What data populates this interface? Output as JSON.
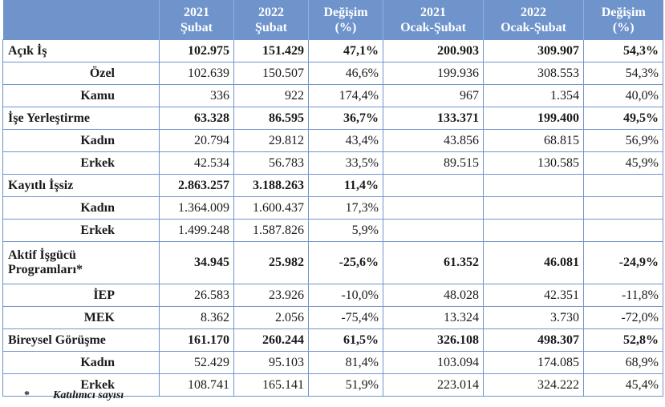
{
  "headers": [
    "",
    "2021\nŞubat",
    "2022\nŞubat",
    "Değişim\n(%)",
    "2021\nOcak-Şubat",
    "2022\nOcak-Şubat",
    "Değişim\n(%)"
  ],
  "rows": [
    {
      "type": "main",
      "h": 1,
      "label": "Açık İş",
      "cells": [
        "102.975",
        "151.429",
        "47,1%",
        "200.903",
        "309.907",
        "54,3%"
      ]
    },
    {
      "type": "sub",
      "h": 1,
      "label": "Özel",
      "cells": [
        "102.639",
        "150.507",
        "46,6%",
        "199.936",
        "308.553",
        "54,3%"
      ]
    },
    {
      "type": "sub",
      "h": 1,
      "label": "Kamu",
      "cells": [
        "336",
        "922",
        "174,4%",
        "967",
        "1.354",
        "40,0%"
      ]
    },
    {
      "type": "main",
      "h": 1,
      "label": "İşe Yerleştirme",
      "cells": [
        "63.328",
        "86.595",
        "36,7%",
        "133.371",
        "199.400",
        "49,5%"
      ]
    },
    {
      "type": "sub",
      "h": 1,
      "label": "Kadın",
      "cells": [
        "20.794",
        "29.812",
        "43,4%",
        "43.856",
        "68.815",
        "56,9%"
      ]
    },
    {
      "type": "sub",
      "h": 1,
      "label": "Erkek",
      "cells": [
        "42.534",
        "56.783",
        "33,5%",
        "89.515",
        "130.585",
        "45,9%"
      ]
    },
    {
      "type": "main",
      "h": 1,
      "label": "Kayıtlı İşsiz",
      "cells": [
        "2.863.257",
        "3.188.263",
        "11,4%",
        "",
        "",
        ""
      ]
    },
    {
      "type": "sub",
      "h": 1,
      "label": "Kadın",
      "cells": [
        "1.364.009",
        "1.600.437",
        "17,3%",
        "",
        "",
        ""
      ]
    },
    {
      "type": "sub",
      "h": 1,
      "label": "Erkek",
      "cells": [
        "1.499.248",
        "1.587.826",
        "5,9%",
        "",
        "",
        ""
      ]
    },
    {
      "type": "main",
      "h": 2,
      "label": "Aktif İşgücü\nProgramları*",
      "cells": [
        "34.945",
        "25.982",
        "-25,6%",
        "61.352",
        "46.081",
        "-24,9%"
      ]
    },
    {
      "type": "sub",
      "h": 1,
      "label": "İEP",
      "cells": [
        "26.583",
        "23.926",
        "-10,0%",
        "48.028",
        "42.351",
        "-11,8%"
      ]
    },
    {
      "type": "sub",
      "h": 1,
      "label": "MEK",
      "cells": [
        "8.362",
        "2.056",
        "-75,4%",
        "13.324",
        "3.730",
        "-72,0%"
      ]
    },
    {
      "type": "main",
      "h": 1,
      "label": "Bireysel Görüşme",
      "cells": [
        "161.170",
        "260.244",
        "61,5%",
        "326.108",
        "498.307",
        "52,8%"
      ]
    },
    {
      "type": "sub",
      "h": 1,
      "label": "Kadın",
      "cells": [
        "52.429",
        "95.103",
        "81,4%",
        "103.094",
        "174.085",
        "68,9%"
      ]
    },
    {
      "type": "sub",
      "h": 1,
      "label": "Erkek",
      "cells": [
        "108.741",
        "165.141",
        "51,9%",
        "223.014",
        "324.222",
        "45,4%"
      ]
    }
  ],
  "footnote": {
    "mark": "*",
    "text": "Katılımcı sayısı"
  }
}
